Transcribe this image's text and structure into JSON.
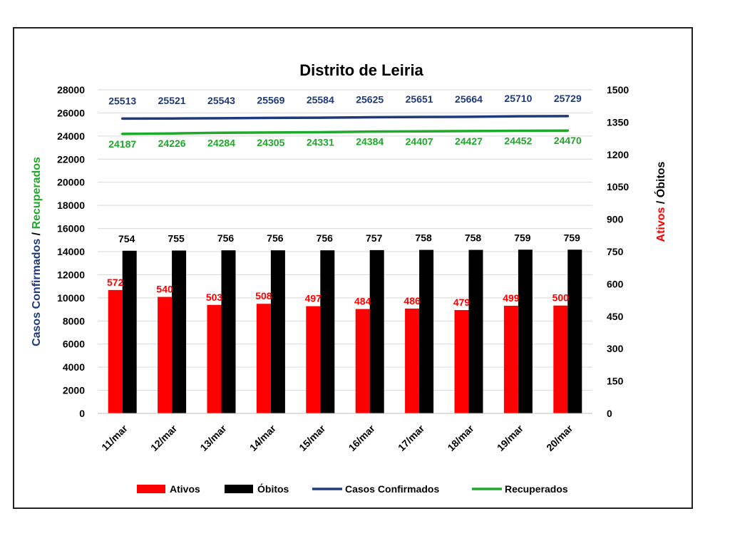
{
  "chart_data": {
    "type": "bar",
    "title": "Distrito de Leiria",
    "categories": [
      "11/mar",
      "12/mar",
      "13/mar",
      "14/mar",
      "15/mar",
      "16/mar",
      "17/mar",
      "18/mar",
      "19/mar",
      "20/mar"
    ],
    "series": [
      {
        "name": "Ativos",
        "kind": "bar",
        "axis": "right",
        "color": "#ff0000",
        "values": [
          572,
          540,
          503,
          508,
          497,
          484,
          486,
          479,
          499,
          500
        ]
      },
      {
        "name": "Óbitos",
        "kind": "bar",
        "axis": "right",
        "color": "#000000",
        "values": [
          754,
          755,
          756,
          756,
          756,
          757,
          758,
          758,
          759,
          759
        ]
      },
      {
        "name": "Casos Confirmados",
        "kind": "line",
        "axis": "left",
        "color": "#1f3a7a",
        "values": [
          25513,
          25521,
          25543,
          25569,
          25584,
          25625,
          25651,
          25664,
          25710,
          25729
        ]
      },
      {
        "name": "Recuperados",
        "kind": "line",
        "axis": "left",
        "color": "#1fa82a",
        "values": [
          24187,
          24226,
          24284,
          24305,
          24331,
          24384,
          24407,
          24427,
          24452,
          24470
        ]
      }
    ],
    "y_left": {
      "label_part1": "Casos Confirmados",
      "label_sep": " / ",
      "label_part2": "Recuperados",
      "label_colors": [
        "#1f3a7a",
        "#000000",
        "#1fa82a"
      ],
      "ylim": [
        0,
        28000
      ],
      "ticks": [
        "0",
        "2000",
        "4000",
        "6000",
        "8000",
        "10000",
        "12000",
        "14000",
        "16000",
        "18000",
        "20000",
        "22000",
        "24000",
        "26000",
        "28000"
      ]
    },
    "y_right": {
      "label_part1": "Ativos",
      "label_sep": " / ",
      "label_part2": "Óbitos",
      "label_colors": [
        "#ff0000",
        "#000000",
        "#000000"
      ],
      "ylim": [
        0,
        1500
      ],
      "ticks": [
        "0",
        "150",
        "300",
        "450",
        "600",
        "750",
        "900",
        "1050",
        "1200",
        "1350",
        "1500"
      ]
    },
    "grid": true,
    "legend_position": "bottom"
  }
}
